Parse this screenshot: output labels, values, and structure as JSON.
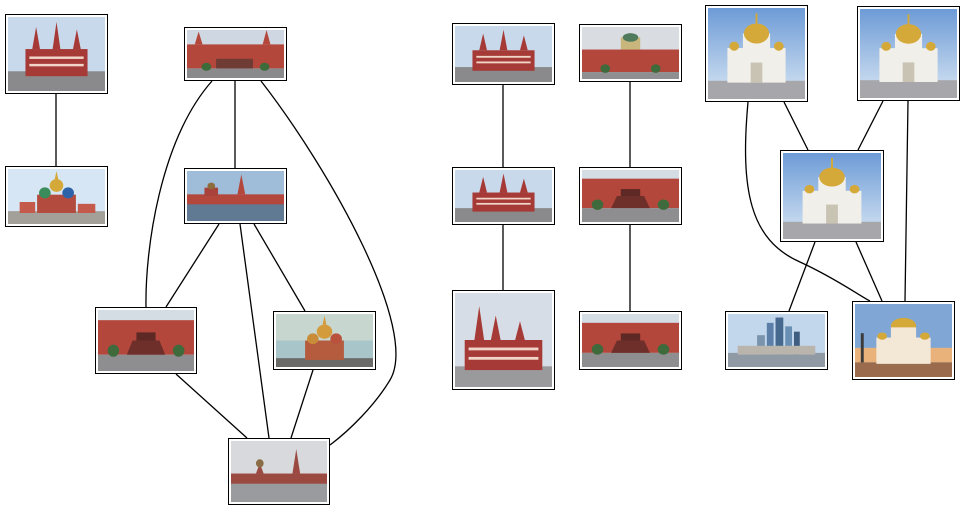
{
  "diagram": {
    "type": "image-similarity-graph",
    "colors": {
      "edge": "#000000",
      "node_border": "#000000",
      "background": "#ffffff",
      "brick_red": "#a63a36",
      "kremlin_wall": "#b4473c",
      "sky_blue": "#8fb5dd",
      "gold_dome": "#d4a93a",
      "cathedral_white": "#f1efe9",
      "stone_grey": "#8f9096"
    },
    "nodes": [
      {
        "id": "n1",
        "icon": "state-history-museum-thumbnail"
      },
      {
        "id": "n2",
        "icon": "st-basils-cathedral-thumbnail"
      },
      {
        "id": "n3",
        "icon": "kremlin-wall-mausoleum-thumbnail"
      },
      {
        "id": "n4",
        "icon": "red-square-spasskaya-thumbnail"
      },
      {
        "id": "n5",
        "icon": "lenin-mausoleum-thumbnail"
      },
      {
        "id": "n6",
        "icon": "st-basils-dusk-thumbnail"
      },
      {
        "id": "n7",
        "icon": "red-square-overcast-thumbnail"
      },
      {
        "id": "n8",
        "icon": "state-history-museum-thumbnail"
      },
      {
        "id": "n9",
        "icon": "state-history-museum-thumbnail"
      },
      {
        "id": "n10",
        "icon": "state-history-museum-aerial-thumbnail"
      },
      {
        "id": "n11",
        "icon": "senate-palace-wall-thumbnail"
      },
      {
        "id": "n12",
        "icon": "lenin-mausoleum-thumbnail"
      },
      {
        "id": "n13",
        "icon": "lenin-mausoleum-thumbnail"
      },
      {
        "id": "n14",
        "icon": "christ-the-saviour-cathedral-thumbnail"
      },
      {
        "id": "n15",
        "icon": "christ-the-saviour-cathedral-thumbnail"
      },
      {
        "id": "n16",
        "icon": "christ-the-saviour-cathedral-thumbnail"
      },
      {
        "id": "n17",
        "icon": "moscow-city-skyline-thumbnail"
      },
      {
        "id": "n18",
        "icon": "christ-the-saviour-sunset-thumbnail"
      }
    ],
    "edges": [
      {
        "source": "n1",
        "target": "n2"
      },
      {
        "source": "n3",
        "target": "n4"
      },
      {
        "source": "n3",
        "target": "n5"
      },
      {
        "source": "n3",
        "target": "n7"
      },
      {
        "source": "n4",
        "target": "n5"
      },
      {
        "source": "n4",
        "target": "n6"
      },
      {
        "source": "n4",
        "target": "n7"
      },
      {
        "source": "n5",
        "target": "n7"
      },
      {
        "source": "n6",
        "target": "n7"
      },
      {
        "source": "n8",
        "target": "n9"
      },
      {
        "source": "n9",
        "target": "n10"
      },
      {
        "source": "n11",
        "target": "n12"
      },
      {
        "source": "n12",
        "target": "n13"
      },
      {
        "source": "n14",
        "target": "n16"
      },
      {
        "source": "n14",
        "target": "n18"
      },
      {
        "source": "n15",
        "target": "n16"
      },
      {
        "source": "n15",
        "target": "n18"
      },
      {
        "source": "n16",
        "target": "n17"
      },
      {
        "source": "n16",
        "target": "n18"
      }
    ]
  }
}
